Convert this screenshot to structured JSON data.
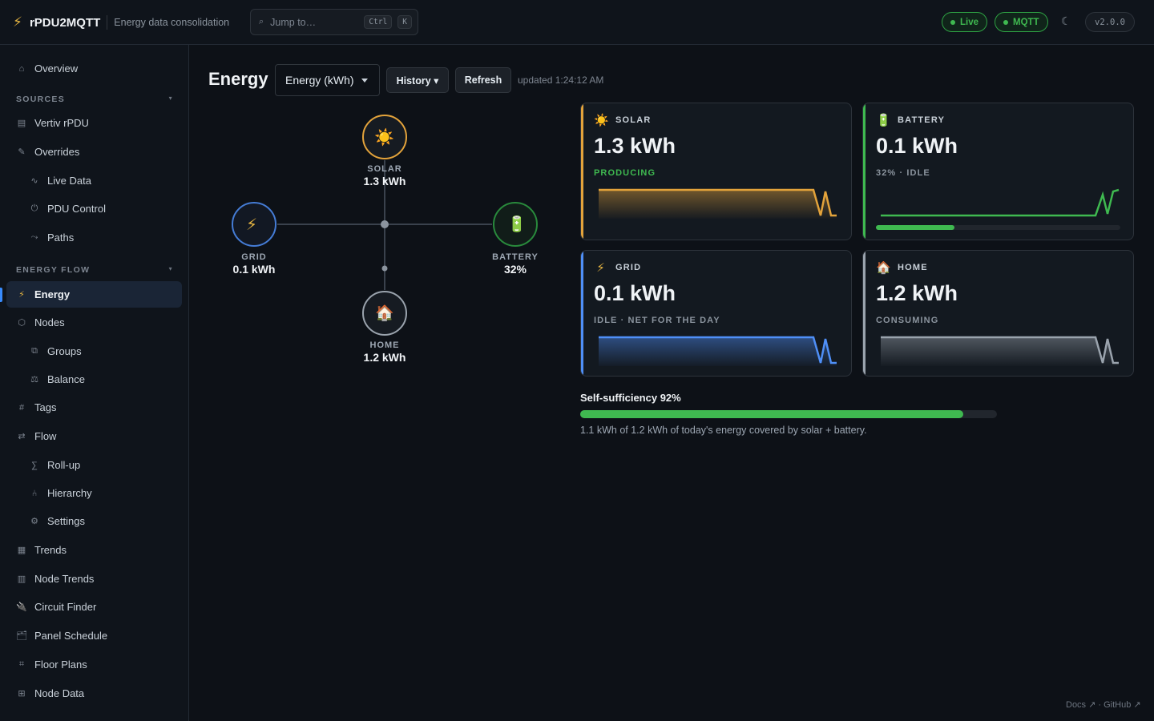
{
  "app": {
    "name": "rPDU2MQTT",
    "subtitle": "Energy data consolidation",
    "search_placeholder": "Jump to…",
    "shortcut_mod": "Ctrl",
    "shortcut_key": "K",
    "status_live": "Live",
    "status_mqtt": "MQTT",
    "version": "v2.0.0"
  },
  "sidebar": {
    "overview": "Overview",
    "sources_label": "SOURCES",
    "vertiv": "Vertiv rPDU",
    "overrides": "Overrides",
    "live_data": "Live Data",
    "pdu_control": "PDU Control",
    "paths": "Paths",
    "energy_flow_label": "ENERGY FLOW",
    "energy": "Energy",
    "nodes": "Nodes",
    "groups": "Groups",
    "balance": "Balance",
    "tags": "Tags",
    "flow": "Flow",
    "rollup": "Roll-up",
    "hierarchy": "Hierarchy",
    "settings": "Settings",
    "trends": "Trends",
    "node_trends": "Node Trends",
    "circuit_finder": "Circuit Finder",
    "panel_schedule": "Panel Schedule",
    "floor_plans": "Floor Plans",
    "node_data": "Node Data"
  },
  "main": {
    "title": "Energy",
    "mode_select": "Energy (kWh)",
    "history_btn": "History ▾",
    "refresh_btn": "Refresh",
    "updated": "updated 1:24:12 AM"
  },
  "flow": {
    "solar_name": "SOLAR",
    "solar_value": "1.3 kWh",
    "grid_name": "GRID",
    "grid_value": "0.1 kWh",
    "battery_name": "BATTERY",
    "battery_value": "32%",
    "home_name": "HOME",
    "home_value": "1.2 kWh"
  },
  "cards": {
    "solar": {
      "title": "SOLAR",
      "value": "1.3 kWh",
      "status": "PRODUCING",
      "color": "#e3a33b"
    },
    "battery": {
      "title": "BATTERY",
      "value": "0.1 kWh",
      "status": "32% · IDLE",
      "color": "#3fb950",
      "charge_fraction": 0.32
    },
    "grid": {
      "title": "GRID",
      "value": "0.1 kWh",
      "status": "IDLE · NET FOR THE DAY",
      "color": "#4f8ff7"
    },
    "home": {
      "title": "HOME",
      "value": "1.2 kWh",
      "status": "CONSUMING",
      "color": "#9aa3ad"
    }
  },
  "self_sufficiency": {
    "title": "Self-sufficiency 92%",
    "fraction": 0.92,
    "note": "1.1 kWh of 1.2 kWh of today's energy covered by solar + battery."
  },
  "footer": "Docs ↗ · GitHub ↗"
}
